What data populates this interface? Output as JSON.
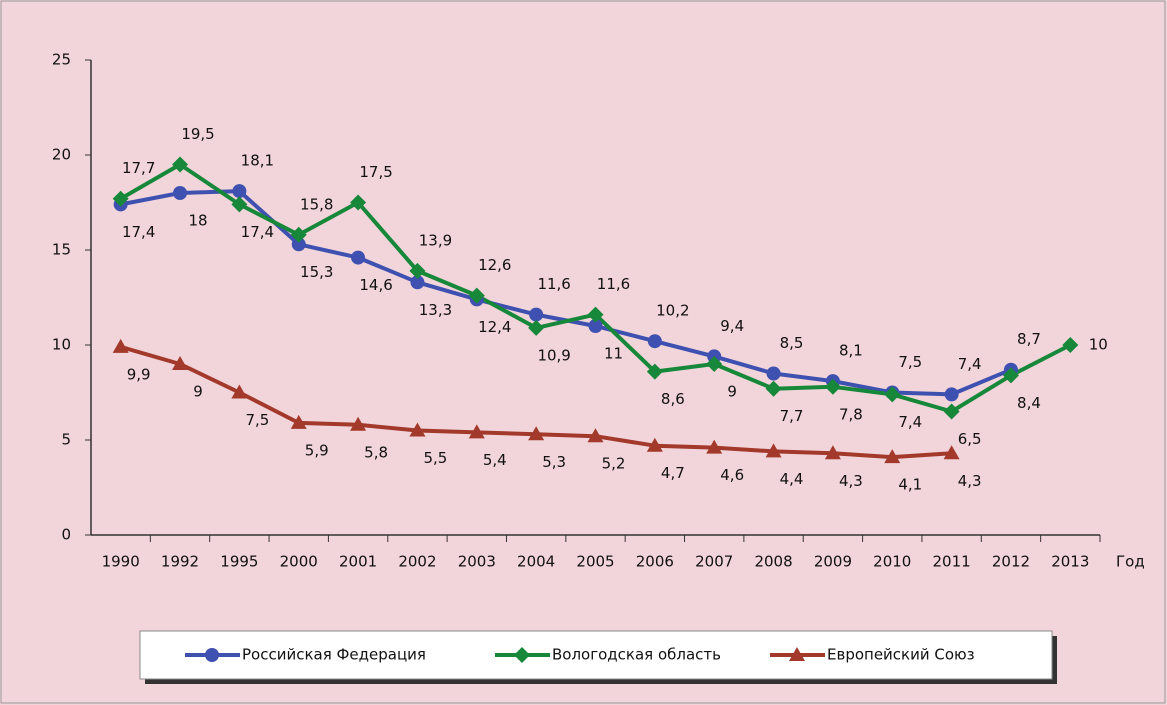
{
  "chart_data": {
    "type": "line",
    "x_label": "Год",
    "categories": [
      "1990",
      "1992",
      "1995",
      "2000",
      "2001",
      "2002",
      "2003",
      "2004",
      "2005",
      "2006",
      "2007",
      "2008",
      "2009",
      "2010",
      "2011",
      "2012",
      "2013"
    ],
    "ylim": [
      0,
      25
    ],
    "yticks": [
      0,
      5,
      10,
      15,
      20,
      25
    ],
    "legend": "bottom",
    "series": [
      {
        "name": "Российская Федерация",
        "color": "#3f51b0",
        "marker": "circle",
        "values": [
          17.4,
          18,
          18.1,
          15.3,
          14.6,
          13.3,
          12.4,
          11.6,
          11,
          10.2,
          9.4,
          8.5,
          8.1,
          7.5,
          7.4,
          8.7,
          null
        ],
        "value_labels": [
          "17,4",
          "18",
          "18,1",
          "15,3",
          "14,6",
          "13,3",
          "12,4",
          "11,6",
          "11",
          "10,2",
          "9,4",
          "8,5",
          "8,1",
          "7,5",
          "7,4",
          "8,7",
          null
        ]
      },
      {
        "name": "Вологодская область",
        "color": "#17883a",
        "marker": "diamond",
        "values": [
          17.7,
          19.5,
          17.4,
          15.8,
          17.5,
          13.9,
          12.6,
          10.9,
          11.6,
          8.6,
          9,
          7.7,
          7.8,
          7.4,
          6.5,
          8.4,
          10
        ],
        "value_labels": [
          "17,7",
          "19,5",
          "17,4",
          "15,8",
          "17,5",
          "13,9",
          "12,6",
          "10,9",
          "11,6",
          "8,6",
          "9",
          "7,7",
          "7,8",
          "7,4",
          "6,5",
          "8,4",
          "10"
        ]
      },
      {
        "name": "Европейский Союз",
        "color": "#a3392b",
        "marker": "triangle",
        "values": [
          9.9,
          9,
          7.5,
          5.9,
          5.8,
          5.5,
          5.4,
          5.3,
          5.2,
          4.7,
          4.6,
          4.4,
          4.3,
          4.1,
          4.3,
          null,
          null
        ],
        "value_labels": [
          "9,9",
          "9",
          "7,5",
          "5,9",
          "5,8",
          "5,5",
          "5,4",
          "5,3",
          "5,2",
          "4,7",
          "4,6",
          "4,4",
          "4,3",
          "4,1",
          "4,3",
          null,
          null
        ]
      }
    ]
  }
}
